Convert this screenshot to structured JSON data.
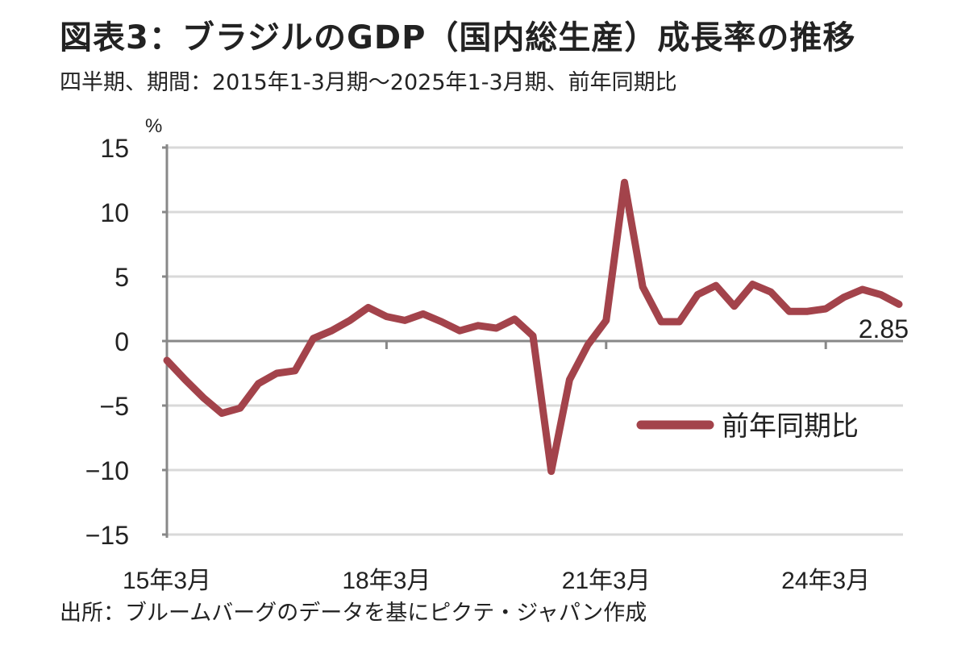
{
  "title": "図表3：ブラジルのGDP（国内総生産）成長率の推移",
  "subtitle": "四半期、期間：2015年1-3月期～2025年1-3月期、前年同期比",
  "source": "出所：ブルームバーグのデータを基にピクテ・ジャパン作成",
  "chart_data": {
    "type": "line",
    "ylabel": "%",
    "ylim": [
      -15,
      15
    ],
    "yticks": [
      "15",
      "10",
      "5",
      "0",
      "−5",
      "−10",
      "−15"
    ],
    "ytick_values": [
      15,
      10,
      5,
      0,
      -5,
      -10,
      -15
    ],
    "xtick_labels": [
      "15年3月",
      "18年3月",
      "21年3月",
      "24年3月"
    ],
    "xtick_indices": [
      0,
      12,
      24,
      36
    ],
    "grid": true,
    "legend": {
      "label": "前年同期比",
      "placement": "lower-right"
    },
    "annotation": "2.85",
    "series": [
      {
        "name": "前年同期比",
        "color": "#a3434b",
        "x": [
          "2015Q1",
          "2015Q2",
          "2015Q3",
          "2015Q4",
          "2016Q1",
          "2016Q2",
          "2016Q3",
          "2016Q4",
          "2017Q1",
          "2017Q2",
          "2017Q3",
          "2017Q4",
          "2018Q1",
          "2018Q2",
          "2018Q3",
          "2018Q4",
          "2019Q1",
          "2019Q2",
          "2019Q3",
          "2019Q4",
          "2020Q1",
          "2020Q2",
          "2020Q3",
          "2020Q4",
          "2021Q1",
          "2021Q2",
          "2021Q3",
          "2021Q4",
          "2022Q1",
          "2022Q2",
          "2022Q3",
          "2022Q4",
          "2023Q1",
          "2023Q2",
          "2023Q3",
          "2023Q4",
          "2024Q1",
          "2024Q2",
          "2024Q3",
          "2024Q4",
          "2025Q1"
        ],
        "values": [
          -1.5,
          -3.0,
          -4.4,
          -5.6,
          -5.2,
          -3.3,
          -2.5,
          -2.3,
          0.2,
          0.8,
          1.6,
          2.6,
          1.9,
          1.6,
          2.1,
          1.5,
          0.8,
          1.2,
          1.0,
          1.7,
          0.4,
          -10.1,
          -3.0,
          -0.3,
          1.6,
          12.3,
          4.2,
          1.5,
          1.5,
          3.6,
          4.3,
          2.7,
          4.4,
          3.8,
          2.3,
          2.3,
          2.5,
          3.4,
          4.0,
          3.6,
          2.85
        ]
      }
    ]
  }
}
